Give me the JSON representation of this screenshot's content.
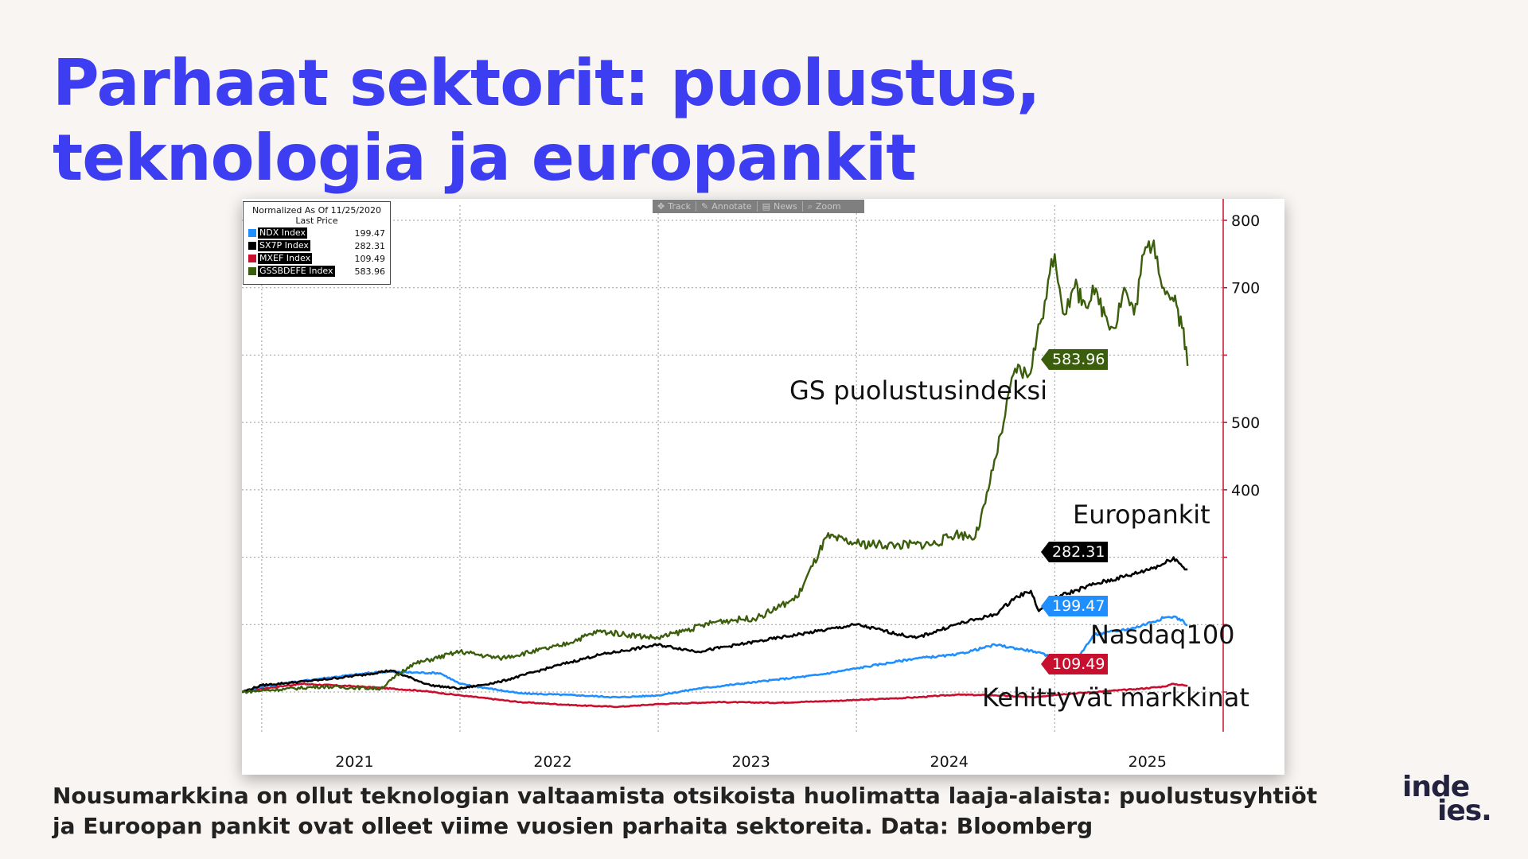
{
  "title": {
    "line1": "Parhaat sektorit: puolustus,",
    "line2": "teknologia ja europankit"
  },
  "toolbar": {
    "items": [
      {
        "label": "Track",
        "icon": "crosshair-icon"
      },
      {
        "label": "Annotate",
        "icon": "pencil-icon"
      },
      {
        "label": "News",
        "icon": "newspaper-icon"
      },
      {
        "label": "Zoom",
        "icon": "magnifier-icon"
      }
    ]
  },
  "legend": {
    "line1": "Normalized As Of 11/25/2020",
    "line2": "Last Price",
    "items": [
      {
        "name": "NDX Index",
        "value": "199.47",
        "color": "#1f8fff"
      },
      {
        "name": "SX7P Index",
        "value": "282.31",
        "color": "#000000"
      },
      {
        "name": "MXEF Index",
        "value": "109.49",
        "color": "#c8102e"
      },
      {
        "name": "GSSBDEFE Index",
        "value": "583.96",
        "color": "#3b5e0c"
      }
    ]
  },
  "annotations": {
    "defense": "GS puolustusindeksi",
    "banks": "Europankit",
    "nasdaq": "Nasdaq100",
    "emerging": "Kehittyvät markkinat"
  },
  "caption": {
    "line1": "Nousumarkkina on ollut teknologian valtaamista otsikoista huolimatta laaja-alaista: puolustusyhtiöt",
    "line2": "ja Euroopan pankit ovat olleet viime vuosien parhaita sektoreita. Data: Bloomberg"
  },
  "logo": {
    "line1": "inde",
    "line2": "ies."
  },
  "chart_data": {
    "type": "line",
    "title": "",
    "xlabel": "",
    "ylabel": "",
    "x_ticks": [
      "2021",
      "2022",
      "2023",
      "2024",
      "2025"
    ],
    "y_ticks": [
      400,
      500,
      700,
      800
    ],
    "ylim": [
      0,
      830
    ],
    "grid": true,
    "legend_position": "top-left",
    "x_unit": "year",
    "series": [
      {
        "name": "GSSBDEFE Index",
        "color": "#3b5e0c",
        "last_value": 583.96,
        "x": [
          2020.9,
          2021.0,
          2021.3,
          2021.6,
          2021.75,
          2022.0,
          2022.2,
          2022.5,
          2022.7,
          2023.0,
          2023.3,
          2023.5,
          2023.7,
          2023.85,
          2024.0,
          2024.2,
          2024.4,
          2024.5,
          2024.6,
          2024.65,
          2024.75,
          2024.8,
          2024.87,
          2024.95,
          2025.0,
          2025.05,
          2025.1,
          2025.15,
          2025.2,
          2025.3,
          2025.35,
          2025.4,
          2025.45,
          2025.5,
          2025.55,
          2025.6,
          2025.65,
          2025.67
        ],
        "values": [
          100,
          102,
          108,
          105,
          140,
          160,
          150,
          168,
          190,
          180,
          205,
          210,
          240,
          330,
          320,
          318,
          320,
          335,
          330,
          380,
          510,
          580,
          570,
          680,
          750,
          660,
          700,
          680,
          690,
          640,
          700,
          660,
          750,
          770,
          700,
          680,
          640,
          584
        ]
      },
      {
        "name": "SX7P Index",
        "color": "#000000",
        "last_value": 282.31,
        "x": [
          2020.9,
          2021.0,
          2021.3,
          2021.5,
          2021.65,
          2021.85,
          2022.0,
          2022.2,
          2022.5,
          2022.7,
          2023.0,
          2023.2,
          2023.5,
          2023.8,
          2024.0,
          2024.3,
          2024.5,
          2024.7,
          2024.8,
          2024.88,
          2024.92,
          2025.0,
          2025.2,
          2025.4,
          2025.55,
          2025.6,
          2025.65,
          2025.67
        ],
        "values": [
          100,
          110,
          118,
          125,
          132,
          110,
          105,
          115,
          140,
          155,
          170,
          160,
          175,
          190,
          200,
          180,
          200,
          215,
          240,
          250,
          220,
          240,
          260,
          275,
          290,
          300,
          285,
          282
        ]
      },
      {
        "name": "NDX Index",
        "color": "#1f8fff",
        "last_value": 199.47,
        "x": [
          2020.9,
          2021.0,
          2021.3,
          2021.6,
          2021.9,
          2022.0,
          2022.3,
          2022.6,
          2022.8,
          2023.0,
          2023.2,
          2023.5,
          2023.8,
          2024.0,
          2024.3,
          2024.5,
          2024.7,
          2024.9,
          2025.0,
          2025.1,
          2025.2,
          2025.4,
          2025.55,
          2025.6,
          2025.65,
          2025.67
        ],
        "values": [
          100,
          108,
          120,
          130,
          128,
          112,
          98,
          95,
          92,
          95,
          105,
          115,
          125,
          135,
          150,
          155,
          170,
          160,
          150,
          145,
          185,
          195,
          210,
          212,
          205,
          199
        ]
      },
      {
        "name": "MXEF Index",
        "color": "#c8102e",
        "last_value": 109.49,
        "x": [
          2020.9,
          2021.0,
          2021.2,
          2021.5,
          2021.8,
          2022.0,
          2022.3,
          2022.6,
          2022.8,
          2023.0,
          2023.3,
          2023.6,
          2023.8,
          2024.0,
          2024.3,
          2024.5,
          2024.7,
          2024.9,
          2025.0,
          2025.2,
          2025.4,
          2025.55,
          2025.6,
          2025.65,
          2025.67
        ],
        "values": [
          100,
          105,
          112,
          108,
          102,
          95,
          85,
          80,
          78,
          82,
          85,
          84,
          86,
          88,
          92,
          96,
          95,
          92,
          96,
          100,
          104,
          108,
          112,
          110,
          109
        ]
      }
    ]
  }
}
